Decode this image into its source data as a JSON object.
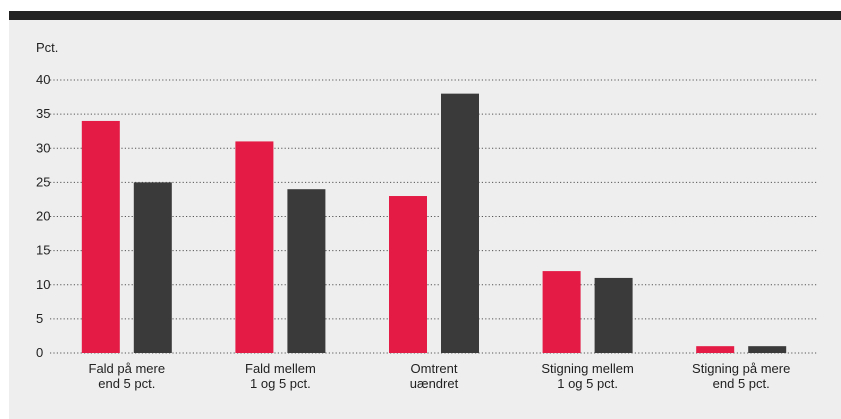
{
  "chart_data": {
    "type": "bar",
    "ylabel": "Pct.",
    "ylim": [
      0,
      40
    ],
    "yticks": [
      0,
      5,
      10,
      15,
      20,
      25,
      30,
      35,
      40
    ],
    "grid": "horizontal-dotted",
    "categories": [
      [
        "Fald på mere",
        "end 5 pct."
      ],
      [
        "Fald mellem",
        "1 og 5 pct."
      ],
      [
        "Omtrent",
        "uændret"
      ],
      [
        "Stigning mellem",
        "1 og 5 pct."
      ],
      [
        "Stigning på mere",
        "end 5 pct."
      ]
    ],
    "series": [
      {
        "color": "#e31b45",
        "values": [
          34,
          31,
          23,
          12,
          1
        ]
      },
      {
        "color": "#3a3a3a",
        "values": [
          25,
          24,
          38,
          11,
          1
        ]
      }
    ]
  }
}
